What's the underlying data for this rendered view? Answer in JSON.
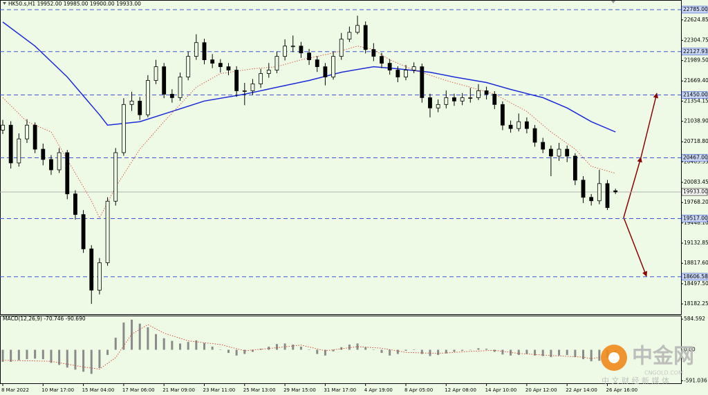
{
  "chart_data": {
    "type": "candlestick",
    "title": "HK50.s,H1  19952.00 19985.00 19900.00 19933.00",
    "color": "#000000",
    "background": "#eefae6",
    "categories": [
      "8 Mar 2022",
      null,
      null,
      null,
      null,
      "10 Mar 17:00",
      null,
      null,
      null,
      null,
      "15 Mar 04:00",
      null,
      null,
      null,
      null,
      "17 Mar 06:00",
      null,
      null,
      null,
      null,
      "21 Mar 09:00",
      null,
      null,
      null,
      null,
      "23 Mar 11:00",
      null,
      null,
      null,
      null,
      "25 Mar 13:00",
      null,
      null,
      null,
      null,
      "29 Mar 15:00",
      null,
      null,
      null,
      null,
      "31 Mar 17:00",
      null,
      null,
      null,
      null,
      "4 Apr 19:00",
      null,
      null,
      null,
      null,
      "8 Apr 05:00",
      null,
      null,
      null,
      null,
      "12 Apr 08:00",
      null,
      null,
      null,
      null,
      "14 Apr 10:00",
      null,
      null,
      null,
      null,
      "20 Apr 12:00",
      null,
      null,
      null,
      null,
      "22 Apr 14:00",
      null,
      null,
      null,
      null,
      "26 Apr 16:00",
      null
    ],
    "open": [
      20900,
      20978,
      20387,
      20763,
      20978,
      20602,
      20441,
      20279,
      20548,
      19903,
      19580,
      19043,
      18397,
      18827,
      19789,
      20548,
      21301,
      21355,
      21140,
      21677,
      21892,
      21462,
      21408,
      21731,
      22054,
      22269,
      22000,
      21946,
      21892,
      21839,
      21516,
      21516,
      21624,
      21785,
      21839,
      22054,
      22215,
      22215,
      22107,
      22000,
      21892,
      21731,
      22054,
      22323,
      22430,
      22538,
      22161,
      22054,
      21946,
      21839,
      21731,
      21839,
      21892,
      21408,
      21247,
      21301,
      21408,
      21355,
      21408,
      21408,
      21516,
      21462,
      21301,
      20978,
      20925,
      21032,
      20925,
      20710,
      20602,
      20494,
      20602,
      20494,
      20118,
      19849,
      19795,
      20064,
      19952
    ],
    "high": [
      21060,
      21040,
      20850,
      21070,
      21020,
      20690,
      20510,
      20620,
      20590,
      19960,
      19650,
      19100,
      18900,
      19850,
      20620,
      21400,
      21500,
      21420,
      21760,
      22000,
      21950,
      21540,
      21800,
      22130,
      22400,
      22330,
      22090,
      22010,
      21950,
      21900,
      21640,
      21700,
      21860,
      21950,
      22130,
      22320,
      22380,
      22280,
      22170,
      22060,
      21950,
      22130,
      22420,
      22520,
      22690,
      22600,
      22260,
      22110,
      22010,
      21900,
      21920,
      21960,
      21940,
      21470,
      21380,
      21520,
      21470,
      21480,
      21560,
      21620,
      21580,
      21510,
      21350,
      21050,
      21160,
      21100,
      20980,
      20780,
      20660,
      20700,
      20660,
      20540,
      20180,
      19900,
      20280,
      20120,
      19985
    ],
    "low": [
      20840,
      20300,
      20330,
      20700,
      20540,
      20350,
      20200,
      20230,
      19820,
      19500,
      18980,
      18182,
      18330,
      18780,
      19720,
      20500,
      21200,
      21060,
      21100,
      21620,
      21400,
      21330,
      21360,
      21680,
      22000,
      21930,
      21870,
      21800,
      21760,
      21420,
      21290,
      21450,
      21560,
      21720,
      21790,
      21990,
      22120,
      22030,
      21920,
      21810,
      21600,
      21690,
      22000,
      22280,
      22400,
      22100,
      21980,
      21870,
      21770,
      21650,
      21680,
      21790,
      21330,
      21100,
      21180,
      21240,
      21280,
      21290,
      21330,
      21370,
      21380,
      21230,
      20900,
      20860,
      20880,
      20850,
      20640,
      20540,
      20180,
      20420,
      20400,
      20040,
      19760,
      19720,
      19740,
      19650,
      19900
    ],
    "close": [
      20978,
      20387,
      20763,
      20978,
      20602,
      20441,
      20279,
      20548,
      19903,
      19580,
      19043,
      18397,
      18827,
      19789,
      20548,
      21301,
      21355,
      21140,
      21677,
      21892,
      21462,
      21408,
      21731,
      22054,
      22269,
      22000,
      21946,
      21892,
      21839,
      21516,
      21516,
      21624,
      21785,
      21839,
      22054,
      22215,
      22215,
      22107,
      22000,
      21892,
      21731,
      22054,
      22323,
      22430,
      22538,
      22161,
      22054,
      21946,
      21839,
      21731,
      21839,
      21892,
      21408,
      21247,
      21301,
      21408,
      21355,
      21408,
      21408,
      21516,
      21462,
      21301,
      20978,
      20925,
      21032,
      20925,
      20710,
      20602,
      20494,
      20602,
      20494,
      20118,
      19849,
      19795,
      20064,
      19688,
      19933
    ],
    "ylim": [
      18021,
      22914
    ],
    "yticks": [
      {
        "value": 22624.85,
        "label": "22624.85"
      },
      {
        "value": 22304.75,
        "label": "22304.75"
      },
      {
        "value": 21989.5,
        "label": "21989.50"
      },
      {
        "value": 21669.4,
        "label": "21669.40"
      },
      {
        "value": 21354.15,
        "label": "21354.15"
      },
      {
        "value": 21038.9,
        "label": "21038.90"
      },
      {
        "value": 20718.8,
        "label": "20718.80"
      },
      {
        "value": 20403.55,
        "label": "20403.55"
      },
      {
        "value": 20083.45,
        "label": "20083.45"
      },
      {
        "value": 19768.2,
        "label": "19768.20"
      },
      {
        "value": 19448.1,
        "label": "19448.10"
      },
      {
        "value": 19132.85,
        "label": "19132.85"
      },
      {
        "value": 18817.6,
        "label": "18817.60"
      },
      {
        "value": 18497.5,
        "label": "18497.50"
      },
      {
        "value": 18182.25,
        "label": "18182.25"
      }
    ],
    "levels": [
      {
        "value": 22785,
        "label": "22785.00",
        "color": "#3a56d4",
        "dashed": true
      },
      {
        "value": 22127.93,
        "label": "22127.93",
        "color": "#3a56d4",
        "dashed": true
      },
      {
        "value": 21450,
        "label": "21450.00",
        "color": "#3a56d4",
        "dashed": true
      },
      {
        "value": 20467,
        "label": "20467.00",
        "color": "#3a56d4",
        "dashed": true
      },
      {
        "value": 19933,
        "label": "19933.00",
        "color": "#b0b0b0",
        "dashed": false
      },
      {
        "value": 19517,
        "label": "19517.00",
        "color": "#3a56d4",
        "dashed": true
      },
      {
        "value": 18606.58,
        "label": "18606.58",
        "color": "#3a56d4",
        "dashed": true
      }
    ],
    "ma_lines": [
      {
        "color": "#1a2ad8",
        "dashed": false,
        "x": [
          0,
          4,
          8,
          12,
          13,
          17,
          21,
          25,
          30,
          34,
          38,
          42,
          46,
          49,
          53,
          56,
          60,
          63,
          67,
          70,
          73,
          76
        ],
        "values": [
          22591,
          22215,
          21731,
          21140,
          20978,
          21032,
          21193,
          21355,
          21462,
          21570,
          21677,
          21806,
          21892,
          21860,
          21806,
          21731,
          21645,
          21537,
          21408,
          21247,
          21032,
          20871
        ]
      },
      {
        "color": "#d43a2a",
        "dashed": true,
        "x": [
          0,
          3,
          6,
          8,
          11,
          12,
          14,
          17,
          20,
          24,
          27,
          31,
          34,
          37,
          41,
          44,
          46,
          48,
          51,
          55,
          58,
          61,
          65,
          68,
          71,
          73,
          76
        ],
        "values": [
          21408,
          21032,
          20871,
          20441,
          19795,
          19527,
          20010,
          20602,
          21032,
          21570,
          21785,
          21860,
          21892,
          22000,
          22107,
          22215,
          22161,
          22000,
          21839,
          21677,
          21570,
          21462,
          21193,
          20871,
          20602,
          20333,
          20226
        ]
      }
    ],
    "indicator": {
      "type": "macd",
      "label": "MACD(12,26,9) -70.746 -90.690",
      "ylim": [
        -640,
        640
      ],
      "yticks": [
        584.592,
        {
          "value": 0,
          "label": "0.00"
        },
        {
          "value": -591.036,
          "label": "-591.036"
        }
      ],
      "color": "#8a8a8a",
      "values": [
        -230,
        -230,
        -200,
        -180,
        -170,
        -180,
        -250,
        -290,
        -340,
        -380,
        -420,
        -460,
        -350,
        -100,
        230,
        520,
        575,
        500,
        430,
        300,
        220,
        170,
        120,
        150,
        180,
        130,
        60,
        0,
        -60,
        -110,
        -80,
        -40,
        20,
        60,
        110,
        120,
        100,
        60,
        0,
        -80,
        -110,
        -30,
        50,
        100,
        120,
        50,
        0,
        -60,
        -110,
        -80,
        -20,
        0,
        -80,
        -120,
        -100,
        -70,
        -40,
        -20,
        0,
        30,
        20,
        -40,
        -90,
        -110,
        -100,
        -80,
        -110,
        -120,
        -140,
        -110,
        -100,
        -140,
        -180,
        -220,
        -210,
        -150,
        -70.746
      ],
      "signal": {
        "color": "#d43a2a",
        "x": [
          0,
          6,
          10,
          12,
          14,
          16,
          18,
          20,
          23,
          27,
          30,
          34,
          37,
          40,
          44,
          47,
          50,
          54,
          58,
          61,
          64,
          68,
          72,
          73,
          75,
          76
        ],
        "values": [
          -200,
          -220,
          -330,
          -370,
          -150,
          300,
          480,
          320,
          170,
          100,
          -20,
          40,
          90,
          -20,
          60,
          30,
          -50,
          -70,
          -30,
          -10,
          -70,
          -110,
          -140,
          -170,
          -120,
          -90.69
        ]
      }
    }
  },
  "watermark": {
    "name": "中金网",
    "site": "CNGOLD.COM",
    "slogan": "中 文 财 经 新 媒 体"
  }
}
